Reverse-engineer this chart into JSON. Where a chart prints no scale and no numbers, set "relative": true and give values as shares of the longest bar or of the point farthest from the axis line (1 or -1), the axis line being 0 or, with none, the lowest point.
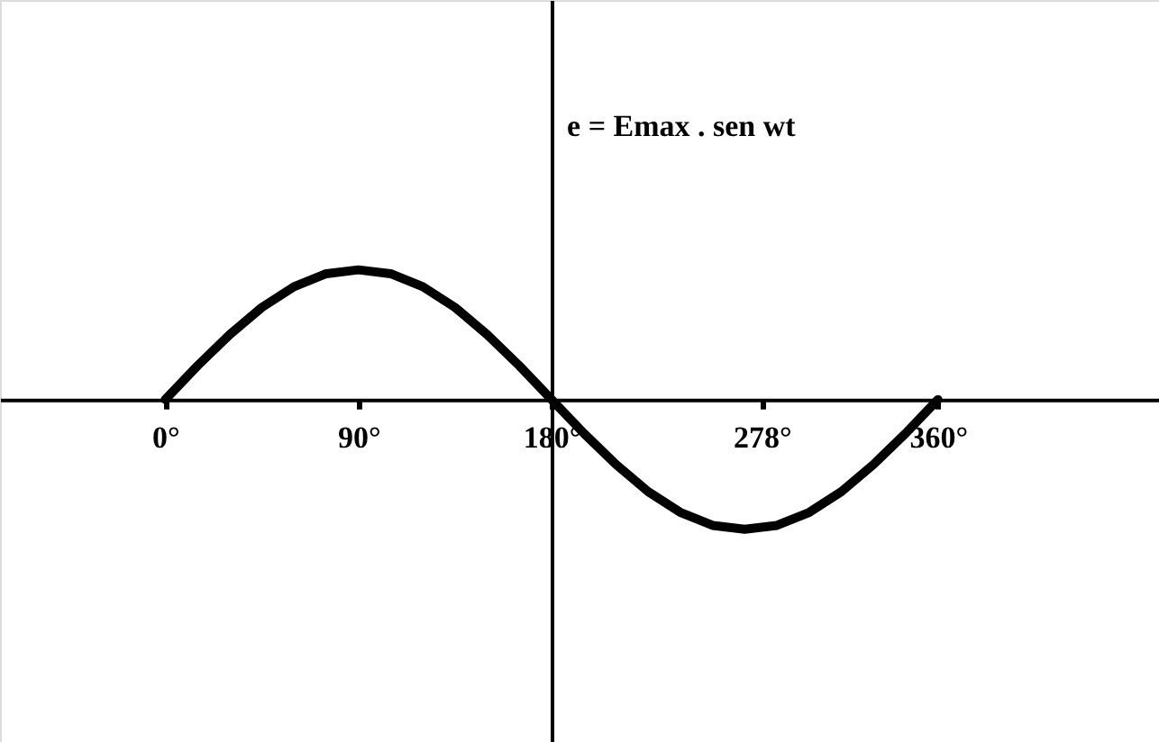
{
  "chart_data": {
    "type": "line",
    "ylabel": "e = Emax . sen wt",
    "relative": true,
    "x": [
      0,
      15,
      30,
      45,
      60,
      75,
      90,
      105,
      120,
      135,
      150,
      165,
      180,
      195,
      210,
      225,
      240,
      255,
      270,
      285,
      300,
      315,
      330,
      345,
      360
    ],
    "values": [
      0,
      0.26,
      0.5,
      0.71,
      0.87,
      0.97,
      1,
      0.97,
      0.87,
      0.71,
      0.5,
      0.26,
      0,
      -0.26,
      -0.5,
      -0.71,
      -0.87,
      -0.97,
      -1,
      -0.97,
      -0.87,
      -0.71,
      -0.5,
      -0.26,
      0
    ],
    "color": "#000000",
    "line_style": "solid",
    "marker": "none",
    "xlim": [
      -77,
      463
    ],
    "xticks": [
      {
        "value": 0,
        "label": "0°"
      },
      {
        "value": 90,
        "label": "90°"
      },
      {
        "value": 180,
        "label": "180°"
      },
      {
        "value": 278,
        "label": "278°"
      },
      {
        "value": 360,
        "label": "360°"
      }
    ]
  }
}
